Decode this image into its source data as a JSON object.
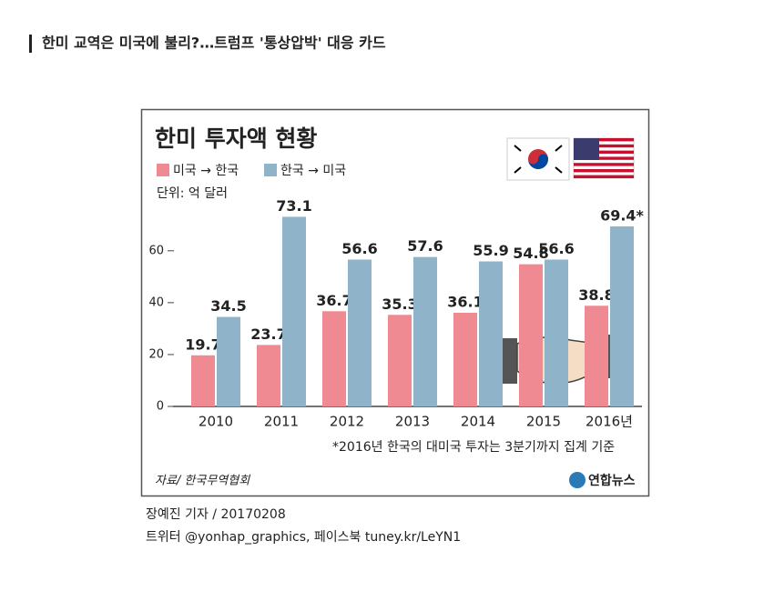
{
  "header": {
    "title": "한미 교역은 미국에 불리?…트럼프 '통상압박' 대응 카드"
  },
  "chart_data": {
    "type": "bar",
    "title": "한미 투자액 현황",
    "unit_label": "단위: 억 달러",
    "categories": [
      "2010",
      "2011",
      "2012",
      "2013",
      "2014",
      "2015",
      "2016년"
    ],
    "series": [
      {
        "name": "미국 → 한국",
        "color": "#ef8a93",
        "values": [
          19.7,
          23.7,
          36.7,
          35.3,
          36.1,
          54.8,
          38.8
        ]
      },
      {
        "name": "한국 → 미국",
        "color": "#8fb4c9",
        "values": [
          34.5,
          73.1,
          56.6,
          57.6,
          55.9,
          56.6,
          69.4
        ],
        "value_labels": [
          "34.5",
          "73.1",
          "56.6",
          "57.6",
          "55.9",
          "56.6",
          "69.4*"
        ]
      }
    ],
    "ylim": [
      0,
      75
    ],
    "yticks": [
      0,
      20,
      40,
      60
    ],
    "grid": false,
    "footnote": "*2016년 한국의 대미국 투자는 3분기까지 집계 기준",
    "source": "자료/ 한국무역협회",
    "logo": "연합뉴스"
  },
  "credits": {
    "byline": "장예진 기자 / 20170208",
    "social": "트위터 @yonhap_graphics, 페이스북 tuney.kr/LeYN1"
  }
}
